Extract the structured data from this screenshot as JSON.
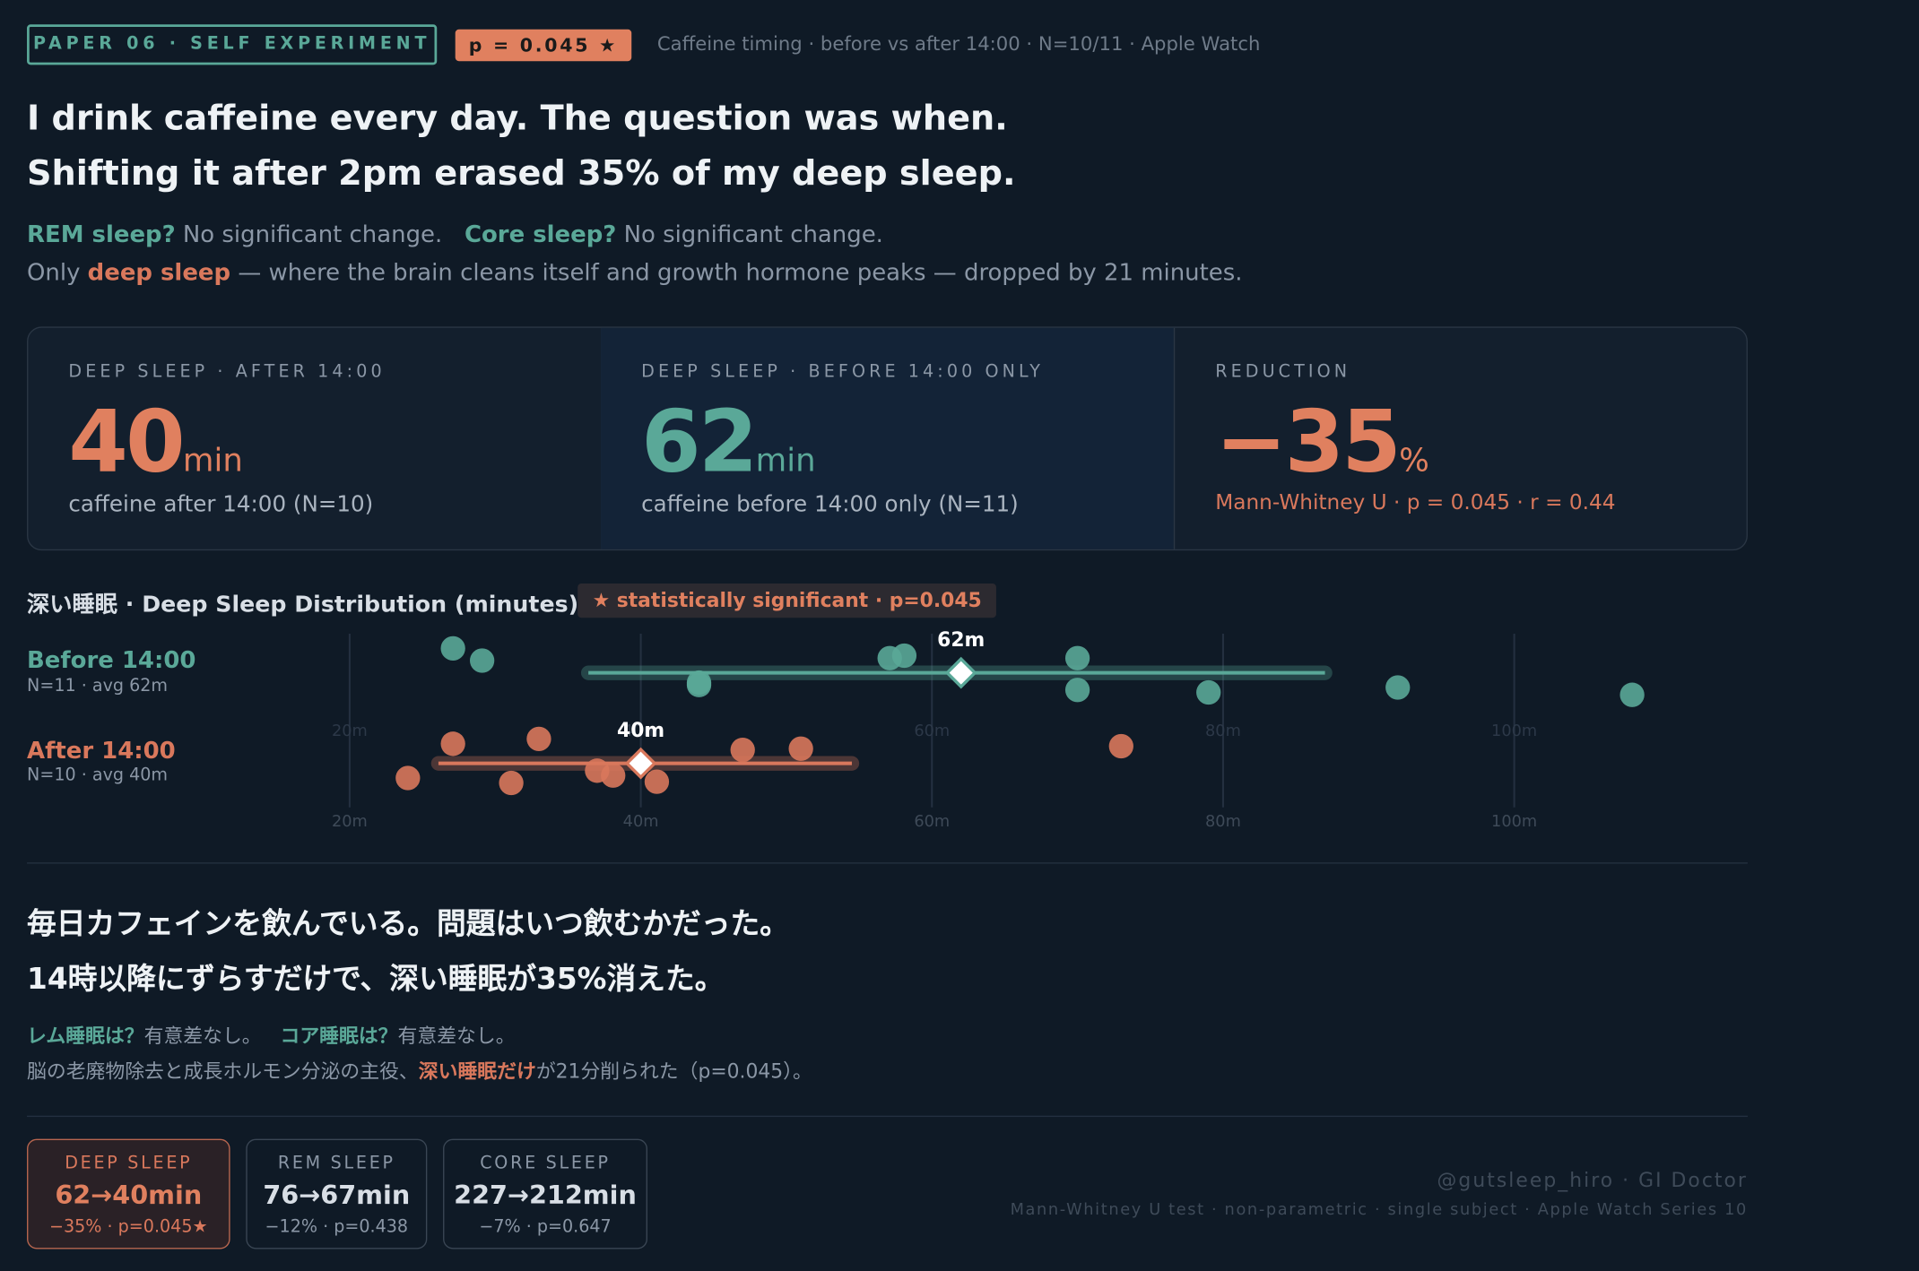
{
  "header": {
    "badge": "PAPER 06 · SELF EXPERIMENT",
    "p_badge": "p = 0.045 ★",
    "meta": "Caffeine timing · before vs after 14:00 · N=10/11 · Apple Watch"
  },
  "headline": {
    "line1": "I drink caffeine every day. The question was when.",
    "line2": "Shifting it after 2pm erased 35% of my deep sleep."
  },
  "summary": {
    "line1": [
      "REM sleep?",
      " No significant change.",
      "Core sleep?",
      " No significant change."
    ],
    "line2": [
      "Only ",
      "deep sleep",
      " — where the brain cleans itself and growth hormone peaks — dropped by 21 minutes."
    ]
  },
  "stats": [
    {
      "label": "DEEP SLEEP · AFTER 14:00",
      "value": "40",
      "unit": "min",
      "note": "caffeine after 14:00 (N=10)"
    },
    {
      "label": "DEEP SLEEP · BEFORE 14:00 ONLY",
      "value": "62",
      "unit": "min",
      "note": "caffeine before 14:00 only (N=11)"
    },
    {
      "label": "REDUCTION",
      "value": "−35",
      "unit": "%",
      "note": "Mann-Whitney U · p = 0.045 · r = 0.44"
    }
  ],
  "chart_data": {
    "type": "strip",
    "title": "深い睡眠 · Deep Sleep Distribution (minutes)",
    "badge": "★ statistically significant · p=0.045",
    "xlim": [
      17,
      112
    ],
    "xticks": [
      {
        "value": 20,
        "label": "20m"
      },
      {
        "value": 40,
        "label": "40m"
      },
      {
        "value": 60,
        "label": "60m"
      },
      {
        "value": 80,
        "label": "80m"
      },
      {
        "value": 100,
        "label": "100m"
      }
    ],
    "grid": true,
    "series": [
      {
        "name": "Before 14:00",
        "subtitle": "N=11 · avg 62m",
        "color": "#5aa898",
        "values": [
          27.1,
          29.1,
          44,
          44,
          57.1,
          58.1,
          70,
          70,
          79,
          92,
          108.1
        ],
        "band": [
          36.4,
          87
        ],
        "mean": 62,
        "mean_label": "62m"
      },
      {
        "name": "After 14:00",
        "subtitle": "N=10 · avg 40m",
        "color": "#d9785c",
        "values": [
          24,
          27.1,
          31.1,
          33,
          37,
          38.1,
          41.1,
          47,
          51,
          73
        ],
        "band": [
          26.1,
          54.5
        ],
        "mean": 40,
        "mean_label": "40m"
      }
    ]
  },
  "japanese": {
    "line1": "毎日カフェインを飲んでいる。問題はいつ飲むかだった。",
    "line2": "14時以降にずらすだけで、深い睡眠が35%消えた。",
    "sub1": [
      "レム睡眠は？",
      "有意差なし。",
      "コア睡眠は？",
      "有意差なし。"
    ],
    "sub2": [
      "脳の老廃物除去と成長ホルモン分泌の主役、",
      "深い睡眠だけ",
      "が21分削られた（p=0.045）。"
    ]
  },
  "cards": [
    {
      "label": "DEEP SLEEP",
      "value": "62→40min",
      "note": "−35% · p=0.045★"
    },
    {
      "label": "REM SLEEP",
      "value": "76→67min",
      "note": "−12% · p=0.438"
    },
    {
      "label": "CORE SLEEP",
      "value": "227→212min",
      "note": "−7% · p=0.647"
    }
  ],
  "footer": {
    "handle": "@gutsleep_hiro · GI Doctor",
    "method": "Mann-Whitney U test · non-parametric · single subject · Apple Watch Series 10"
  }
}
